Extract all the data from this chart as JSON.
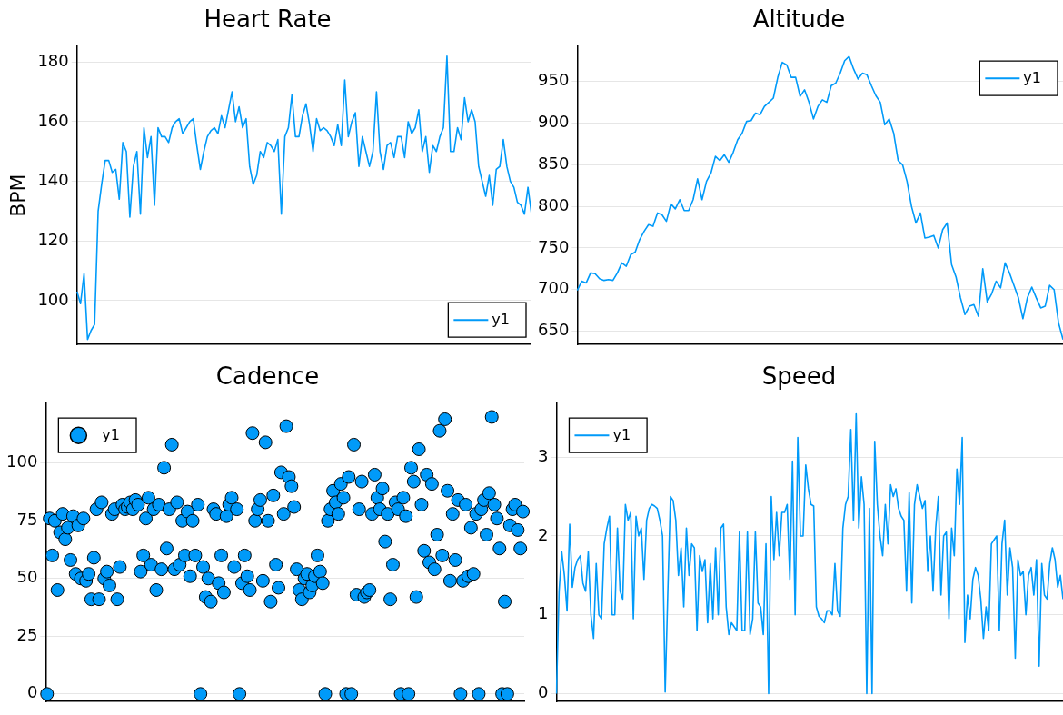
{
  "chart_data": [
    {
      "type": "line",
      "title": "Heart Rate",
      "ylabel": "BPM",
      "ylim": [
        85.3,
        185.2
      ],
      "yticks": [
        100,
        120,
        140,
        160,
        180
      ],
      "grid": "y",
      "legend": "bottom right",
      "tick_labels": "y",
      "marker": "none",
      "categories": [
        null,
        null,
        null,
        null,
        null,
        null,
        null,
        null,
        null,
        null,
        null,
        null,
        null,
        null,
        null,
        null,
        null,
        null,
        null,
        null,
        null,
        null,
        null,
        null,
        null,
        null,
        null,
        null,
        null,
        null,
        null,
        null,
        null,
        null,
        null,
        null,
        null,
        null,
        null,
        null,
        null,
        null,
        null,
        null,
        null,
        null,
        null,
        null,
        null,
        null,
        null,
        null,
        null,
        null,
        null,
        null,
        null,
        null,
        null,
        null,
        null,
        null,
        null,
        null,
        null,
        null,
        null,
        null,
        null,
        null,
        null,
        null,
        null,
        null,
        null,
        null,
        null,
        null,
        null,
        null,
        null,
        null,
        null,
        null,
        null,
        null,
        null,
        null,
        null,
        null,
        null,
        null,
        null,
        null,
        null,
        null,
        null,
        null,
        null,
        null,
        null,
        null,
        null,
        null,
        null,
        null,
        null,
        null,
        null,
        null,
        null,
        null,
        null,
        null,
        null,
        null,
        null,
        null,
        null,
        null,
        null,
        null,
        null,
        null,
        null,
        null,
        null,
        null,
        null,
        null
      ],
      "series": [
        {
          "name": "y1",
          "color": "#009af9",
          "values": [
            103,
            99,
            109,
            87,
            90,
            92,
            130,
            139,
            147,
            147,
            143,
            144,
            134,
            153,
            150,
            128,
            145,
            150,
            129,
            158,
            148,
            155,
            132,
            158,
            155,
            155,
            153,
            158,
            160,
            161,
            156,
            158,
            160,
            161,
            152,
            144,
            150,
            155,
            157,
            158,
            156,
            162,
            158,
            164,
            170,
            160,
            165,
            158,
            161,
            145,
            139,
            142,
            150,
            148,
            153,
            152,
            150,
            154,
            129,
            155,
            158,
            169,
            155,
            155,
            162,
            166,
            159,
            150,
            161,
            157,
            158,
            157,
            155,
            152,
            159,
            152,
            174,
            155,
            160,
            163,
            145,
            155,
            150,
            145,
            150,
            170,
            150,
            144,
            152,
            153,
            148,
            155,
            155,
            148,
            160,
            156,
            158,
            164,
            150,
            155,
            143,
            152,
            150,
            155,
            158,
            182,
            150,
            150,
            158,
            154,
            168,
            160,
            164,
            160,
            145,
            140,
            135,
            142,
            132,
            144,
            145,
            154,
            145,
            140,
            138,
            133,
            132,
            129,
            138,
            129
          ]
        }
      ]
    },
    {
      "type": "line",
      "title": "Altitude",
      "ylim": [
        634,
        992
      ],
      "yticks": [
        650,
        700,
        750,
        800,
        850,
        900,
        950
      ],
      "grid": "y",
      "legend": "top right",
      "tick_labels": "y",
      "marker": "none",
      "categories": [
        null,
        null,
        null,
        null,
        null,
        null,
        null,
        null,
        null,
        null,
        null,
        null,
        null,
        null,
        null,
        null,
        null,
        null,
        null,
        null,
        null,
        null,
        null,
        null,
        null,
        null,
        null,
        null,
        null,
        null,
        null,
        null,
        null,
        null,
        null,
        null,
        null,
        null,
        null,
        null,
        null,
        null,
        null,
        null,
        null,
        null,
        null,
        null,
        null,
        null,
        null,
        null,
        null,
        null,
        null,
        null,
        null,
        null,
        null,
        null,
        null,
        null,
        null,
        null,
        null,
        null,
        null,
        null,
        null,
        null,
        null,
        null,
        null,
        null,
        null,
        null,
        null,
        null,
        null,
        null,
        null,
        null,
        null,
        null,
        null,
        null,
        null,
        null,
        null,
        null,
        null,
        null,
        null,
        null,
        null,
        null,
        null,
        null,
        null,
        null,
        null,
        null,
        null,
        null,
        null,
        null,
        null,
        null,
        null,
        null
      ],
      "series": [
        {
          "name": "y1",
          "color": "#009af9",
          "values": [
            699,
            710,
            708,
            720,
            719,
            713,
            711,
            712,
            711,
            720,
            732,
            728,
            742,
            745,
            760,
            770,
            778,
            776,
            792,
            790,
            782,
            803,
            797,
            808,
            795,
            795,
            808,
            833,
            808,
            830,
            840,
            860,
            855,
            862,
            853,
            865,
            880,
            888,
            902,
            903,
            912,
            910,
            920,
            925,
            930,
            955,
            973,
            970,
            955,
            955,
            932,
            940,
            925,
            905,
            920,
            928,
            925,
            945,
            948,
            960,
            975,
            980,
            965,
            953,
            960,
            958,
            945,
            933,
            925,
            898,
            905,
            888,
            855,
            850,
            830,
            800,
            780,
            792,
            762,
            763,
            765,
            750,
            772,
            780,
            730,
            715,
            690,
            670,
            680,
            682,
            668,
            725,
            685,
            695,
            710,
            702,
            732,
            720,
            705,
            690,
            665,
            690,
            703,
            690,
            678,
            680,
            705,
            700,
            660,
            640
          ]
        }
      ]
    },
    {
      "type": "scatter",
      "title": "Cadence",
      "ylim": [
        -3.3,
        125.8
      ],
      "yticks": [
        0,
        25,
        50,
        75,
        100
      ],
      "grid": "y",
      "legend": "top left",
      "tick_labels": "y",
      "marker": "circle",
      "categories": [
        null,
        null,
        null,
        null,
        null,
        null,
        null,
        null,
        null,
        null,
        null,
        null,
        null,
        null,
        null,
        null,
        null,
        null,
        null,
        null,
        null,
        null,
        null,
        null,
        null,
        null,
        null,
        null,
        null,
        null,
        null,
        null,
        null,
        null,
        null,
        null,
        null,
        null,
        null,
        null,
        null,
        null,
        null,
        null,
        null,
        null,
        null,
        null,
        null,
        null,
        null,
        null,
        null,
        null,
        null,
        null,
        null,
        null,
        null,
        null,
        null,
        null,
        null,
        null,
        null,
        null,
        null,
        null,
        null,
        null,
        null,
        null,
        null,
        null,
        null,
        null,
        null,
        null,
        null,
        null,
        null,
        null,
        null,
        null,
        null,
        null,
        null,
        null,
        null,
        null,
        null,
        null,
        null,
        null,
        null,
        null,
        null,
        null,
        null,
        null,
        null,
        null,
        null,
        null,
        null,
        null,
        null,
        null,
        null,
        null,
        null,
        null,
        null,
        null,
        null,
        null,
        null,
        null,
        null,
        null,
        null,
        null,
        null,
        null,
        null,
        null,
        null,
        null,
        null,
        null,
        null,
        null,
        null,
        null,
        null,
        null,
        null,
        null,
        null,
        null,
        null,
        null,
        null,
        null,
        null,
        null,
        null,
        null,
        null,
        null,
        null,
        null,
        null,
        null,
        null,
        null,
        null,
        null,
        null,
        null,
        null,
        null,
        null,
        null,
        null,
        null,
        null,
        null,
        null,
        null,
        null,
        null,
        null,
        null,
        null,
        null,
        null,
        null,
        null,
        null,
        null,
        null,
        null,
        null
      ],
      "series": [
        {
          "name": "y1",
          "color": "#009af9",
          "values": [
            0,
            76,
            60,
            75,
            45,
            70,
            78,
            67,
            72,
            58,
            77,
            52,
            73,
            50,
            76,
            49,
            52,
            41,
            59,
            80,
            41,
            83,
            50,
            53,
            47,
            78,
            80,
            41,
            55,
            82,
            80,
            81,
            83,
            80,
            84,
            82,
            53,
            60,
            76,
            85,
            56,
            80,
            45,
            82,
            54,
            98,
            63,
            80,
            108,
            54,
            83,
            56,
            75,
            60,
            79,
            51,
            75,
            60,
            82,
            0,
            55,
            42,
            50,
            40,
            80,
            78,
            48,
            60,
            44,
            77,
            82,
            85,
            55,
            80,
            0,
            48,
            60,
            51,
            45,
            113,
            75,
            80,
            84,
            49,
            109,
            75,
            40,
            86,
            56,
            46,
            96,
            78,
            116,
            94,
            90,
            81,
            54,
            45,
            41,
            50,
            52,
            44,
            47,
            51,
            60,
            53,
            48,
            0,
            75,
            80,
            88,
            83,
            78,
            91,
            85,
            0,
            94,
            0,
            108,
            43,
            80,
            92,
            42,
            44,
            45,
            78,
            95,
            85,
            80,
            89,
            66,
            78,
            41,
            56,
            83,
            80,
            0,
            85,
            77,
            0,
            98,
            92,
            42,
            106,
            82,
            62,
            95,
            57,
            91,
            54,
            69,
            114,
            60,
            119,
            88,
            49,
            78,
            58,
            84,
            0,
            49,
            82,
            51,
            72,
            52,
            78,
            0,
            80,
            84,
            69,
            87,
            120,
            82,
            76,
            63,
            0,
            40,
            0,
            73,
            80,
            82,
            71,
            63,
            79
          ]
        }
      ]
    },
    {
      "type": "line",
      "title": "Speed",
      "ylim": [
        -0.1,
        3.68
      ],
      "yticks": [
        0,
        1,
        2,
        3
      ],
      "grid": "y",
      "legend": "top left",
      "tick_labels": "y",
      "marker": "none",
      "categories": [
        null,
        null,
        null,
        null,
        null,
        null,
        null,
        null,
        null,
        null,
        null,
        null,
        null,
        null,
        null,
        null,
        null,
        null,
        null,
        null,
        null,
        null,
        null,
        null,
        null,
        null,
        null,
        null,
        null,
        null,
        null,
        null,
        null,
        null,
        null,
        null,
        null,
        null,
        null,
        null,
        null,
        null,
        null,
        null,
        null,
        null,
        null,
        null,
        null,
        null,
        null,
        null,
        null,
        null,
        null,
        null,
        null,
        null,
        null,
        null,
        null,
        null,
        null,
        null,
        null,
        null,
        null,
        null,
        null,
        null,
        null,
        null,
        null,
        null,
        null,
        null,
        null,
        null,
        null,
        null,
        null,
        null,
        null,
        null,
        null,
        null,
        null,
        null,
        null,
        null,
        null,
        null,
        null,
        null,
        null,
        null,
        null,
        null,
        null,
        null,
        null,
        null,
        null,
        null,
        null,
        null,
        null,
        null,
        null,
        null,
        null,
        null,
        null,
        null,
        null,
        null,
        null,
        null,
        null,
        null,
        null,
        null,
        null,
        null,
        null,
        null,
        null,
        null,
        null,
        null,
        null,
        null,
        null,
        null,
        null,
        null,
        null,
        null,
        null,
        null,
        null,
        null,
        null,
        null,
        null,
        null,
        null,
        null,
        null,
        null,
        null,
        null,
        null,
        null,
        null,
        null,
        null,
        null,
        null,
        null,
        null,
        null,
        null,
        null,
        null,
        null,
        null,
        null,
        null,
        null,
        null,
        null,
        null,
        null,
        null,
        null,
        null,
        null,
        null,
        null,
        null,
        null,
        null,
        null,
        null,
        null,
        null,
        null,
        null,
        null,
        null,
        null
      ],
      "series": [
        {
          "name": "y1",
          "color": "#009af9",
          "values": [
            0,
            1.3,
            1.8,
            1.5,
            1.05,
            2.15,
            1.35,
            1.6,
            1.7,
            1.75,
            1.4,
            1.3,
            1.8,
            1.0,
            0.7,
            1.65,
            1.0,
            0.95,
            1.9,
            2.1,
            2.25,
            1.0,
            1.0,
            2.1,
            1.3,
            1.2,
            2.4,
            2.2,
            2.3,
            0.95,
            2.25,
            2.0,
            2.1,
            1.45,
            2.2,
            2.35,
            2.4,
            2.38,
            2.35,
            2.2,
            2.0,
            0.02,
            1.3,
            2.5,
            2.45,
            2.2,
            1.5,
            1.85,
            1.1,
            2.1,
            1.5,
            1.9,
            1.85,
            0.8,
            1.75,
            1.55,
            1.7,
            0.9,
            1.65,
            0.95,
            1.85,
            1.0,
            2.1,
            2.15,
            1.1,
            0.75,
            0.9,
            0.85,
            0.8,
            2.05,
            0.8,
            0.8,
            2.05,
            0.75,
            0.95,
            2.05,
            1.15,
            1.1,
            0.75,
            1.9,
            0,
            2.5,
            1.7,
            2.3,
            1.75,
            2.3,
            2.3,
            2.4,
            1.45,
            2.95,
            1.0,
            3.25,
            2.0,
            2.0,
            2.9,
            2.6,
            2.4,
            2.38,
            1.1,
            0.98,
            0.95,
            0.9,
            1.05,
            1.05,
            1.0,
            1.65,
            1.05,
            0.98,
            2.1,
            2.4,
            2.5,
            3.35,
            2.2,
            3.55,
            2.1,
            2.75,
            2.4,
            0,
            2.35,
            0,
            3.2,
            2.4,
            2.0,
            1.75,
            2.4,
            1.9,
            2.65,
            2.5,
            2.6,
            2.35,
            2.25,
            2.2,
            1.3,
            2.55,
            1.15,
            2.4,
            2.65,
            2.5,
            2.35,
            2.45,
            1.55,
            2.0,
            1.3,
            2.1,
            2.5,
            1.25,
            2.0,
            2.05,
            0.95,
            2.1,
            1.75,
            2.85,
            2.4,
            3.25,
            0.65,
            1.25,
            0.95,
            1.45,
            1.6,
            1.5,
            1.2,
            0.7,
            1.1,
            0.8,
            1.9,
            1.95,
            2.0,
            0.8,
            1.9,
            2.2,
            1.25,
            1.85,
            1.6,
            0.45,
            1.7,
            1.5,
            1.55,
            1.0,
            1.5,
            1.6,
            1.25,
            1.7,
            0.35,
            1.65,
            1.25,
            1.2,
            1.65,
            1.85,
            1.7,
            1.35,
            1.5,
            1.2
          ]
        }
      ]
    }
  ]
}
